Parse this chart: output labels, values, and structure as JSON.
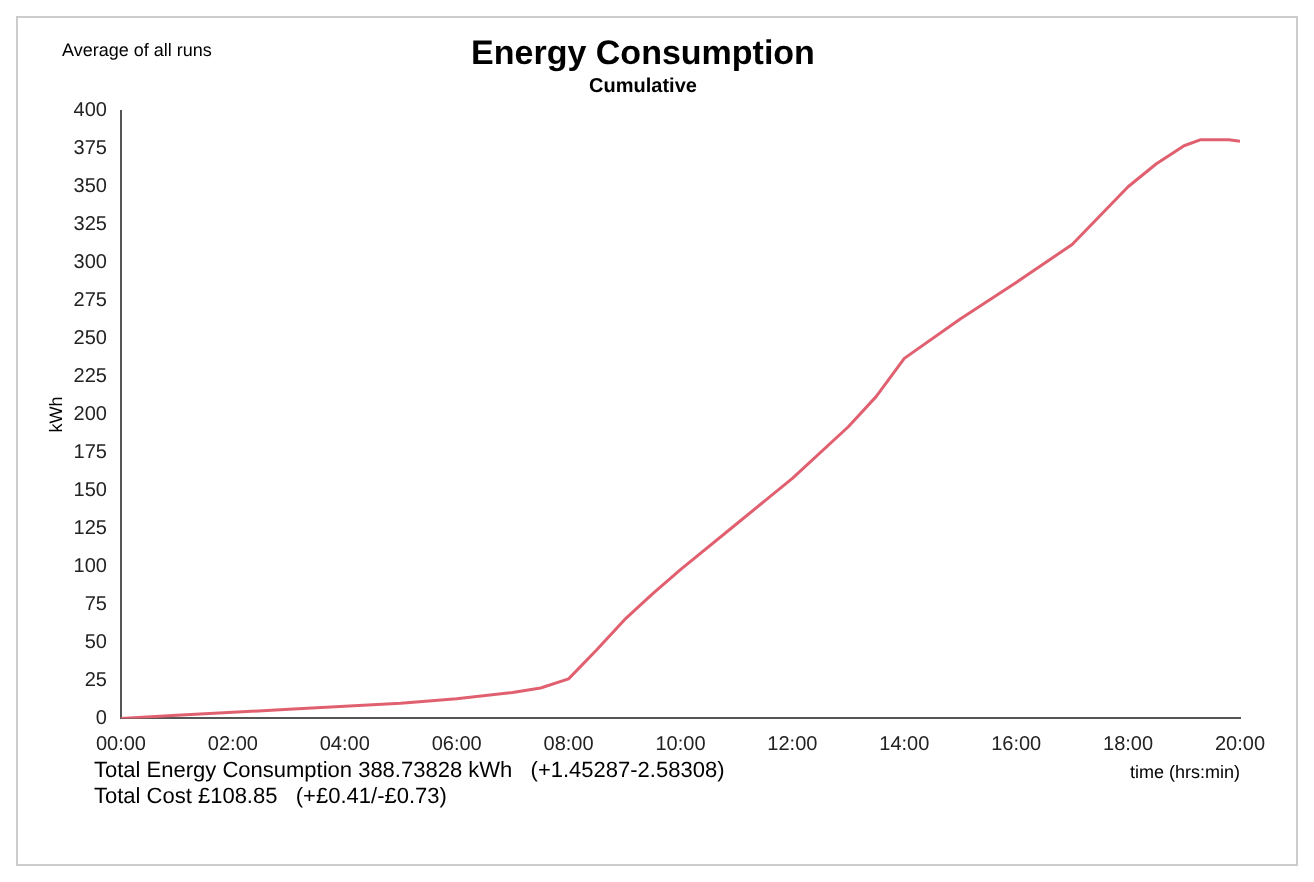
{
  "chart_data": {
    "type": "line",
    "title": "Energy Consumption",
    "subtitle": "Cumulative",
    "xlabel": "time (hrs:min)",
    "ylabel": "kWh",
    "annotations": [
      "Average of all runs",
      "Total Energy Consumption 388.73828 kWh   (+1.45287-2.58308)",
      "Total Cost £108.85   (+£0.41/-£0.73)"
    ],
    "x": [
      0,
      1,
      2,
      3,
      4,
      5,
      6,
      7,
      7.5,
      8,
      8.5,
      9,
      9.5,
      10,
      11,
      12,
      13,
      13.5,
      14,
      15,
      16,
      17,
      18,
      18.5,
      19,
      19.3,
      19.8,
      20
    ],
    "series": [
      {
        "color": "#e06070",
        "values": [
          0,
          2,
          4,
          6,
          8,
          10,
          13,
          17,
          20,
          26,
          45,
          65,
          82,
          98,
          128,
          158,
          192,
          212,
          237,
          263,
          287,
          312,
          350,
          365,
          377,
          381,
          381,
          380
        ]
      }
    ],
    "xlim": [
      0,
      20
    ],
    "xticks": [
      {
        "value": 0,
        "label": "00:00"
      },
      {
        "value": 2,
        "label": "02:00"
      },
      {
        "value": 4,
        "label": "04:00"
      },
      {
        "value": 6,
        "label": "06:00"
      },
      {
        "value": 8,
        "label": "08:00"
      },
      {
        "value": 10,
        "label": "10:00"
      },
      {
        "value": 12,
        "label": "12:00"
      },
      {
        "value": 14,
        "label": "14:00"
      },
      {
        "value": 16,
        "label": "16:00"
      },
      {
        "value": 18,
        "label": "18:00"
      },
      {
        "value": 20,
        "label": "20:00"
      }
    ],
    "ylim": [
      0,
      400
    ],
    "yticks": [
      0,
      25,
      50,
      75,
      100,
      125,
      150,
      175,
      200,
      225,
      250,
      275,
      300,
      325,
      350,
      375,
      400
    ],
    "grid": false,
    "legend": false,
    "marker": "none",
    "line_style": "solid"
  }
}
